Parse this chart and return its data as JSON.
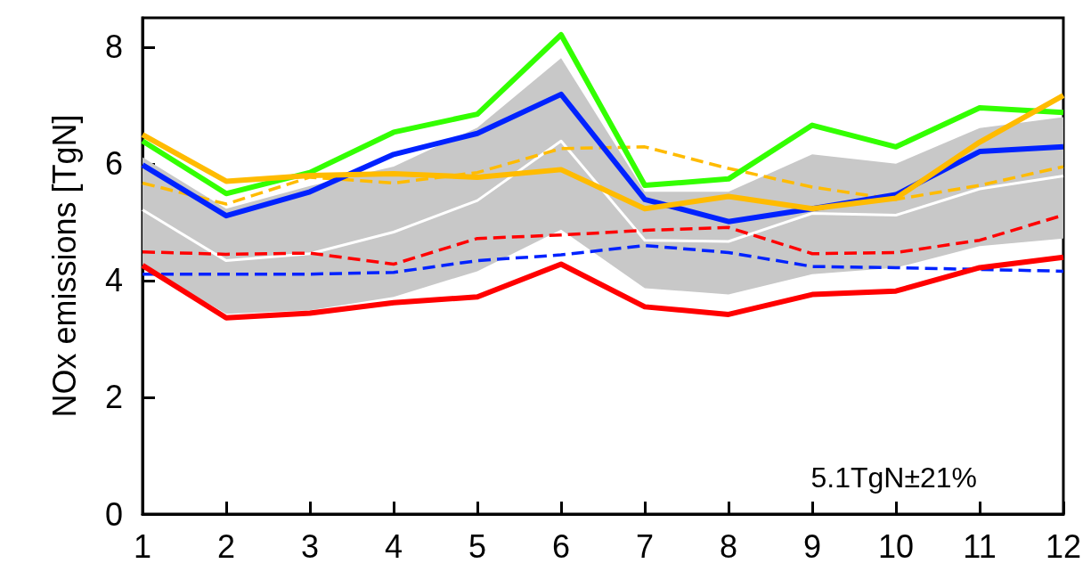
{
  "chart_data": {
    "type": "line",
    "ylabel": "NOx emissions [TgN]",
    "annotations": [
      "5.1TgN±21%"
    ],
    "x": [
      1,
      2,
      3,
      4,
      5,
      6,
      7,
      8,
      9,
      10,
      11,
      12
    ],
    "xlim": [
      1,
      12
    ],
    "xticks": [
      1,
      2,
      3,
      4,
      5,
      6,
      7,
      8,
      9,
      10,
      11,
      12
    ],
    "ylim": [
      0,
      8.5
    ],
    "yticks": [
      0,
      2,
      4,
      6,
      8
    ],
    "grid": false,
    "series": [
      {
        "color": "#ffffff",
        "line_style": "solid",
        "values": [
          5.21,
          4.34,
          4.46,
          4.83,
          5.37,
          6.39,
          4.69,
          4.67,
          5.15,
          5.12,
          5.57,
          5.79
        ],
        "lower": [
          4.26,
          3.43,
          3.49,
          3.72,
          4.16,
          4.87,
          3.87,
          3.76,
          4.11,
          4.22,
          4.59,
          4.72
        ],
        "upper": [
          6.11,
          5.23,
          5.62,
          5.95,
          6.62,
          7.81,
          5.52,
          5.52,
          6.16,
          6.0,
          6.61,
          6.8
        ]
      },
      {
        "color": "#ff0000",
        "line_style": "dashed",
        "values": [
          4.49,
          4.45,
          4.47,
          4.28,
          4.72,
          4.78,
          4.86,
          4.91,
          4.46,
          4.48,
          4.69,
          5.12
        ]
      },
      {
        "color": "#0022ff",
        "line_style": "dashed",
        "values": [
          4.11,
          4.11,
          4.11,
          4.14,
          4.34,
          4.44,
          4.6,
          4.48,
          4.24,
          4.22,
          4.19,
          4.16
        ]
      },
      {
        "color": "#ffbb00",
        "line_style": "dashed",
        "values": [
          5.67,
          5.31,
          5.77,
          5.67,
          5.85,
          6.26,
          6.29,
          5.92,
          5.6,
          5.39,
          5.63,
          5.95
        ]
      },
      {
        "color": "#ff0000",
        "line_style": "solid",
        "values": [
          4.26,
          3.36,
          3.44,
          3.62,
          3.72,
          4.28,
          3.55,
          3.42,
          3.76,
          3.82,
          4.22,
          4.4
        ]
      },
      {
        "color": "#33ff00",
        "line_style": "solid",
        "values": [
          6.39,
          5.49,
          5.85,
          6.54,
          6.85,
          8.21,
          5.63,
          5.74,
          6.66,
          6.29,
          6.96,
          6.88
        ]
      },
      {
        "color": "#0022ff",
        "line_style": "solid",
        "values": [
          5.98,
          5.11,
          5.52,
          6.16,
          6.52,
          7.19,
          5.39,
          5.01,
          5.23,
          5.47,
          6.21,
          6.29
        ]
      },
      {
        "color": "#ffbb00",
        "line_style": "solid",
        "values": [
          6.5,
          5.7,
          5.8,
          5.83,
          5.77,
          5.9,
          5.23,
          5.44,
          5.23,
          5.41,
          6.37,
          7.17
        ]
      }
    ]
  }
}
